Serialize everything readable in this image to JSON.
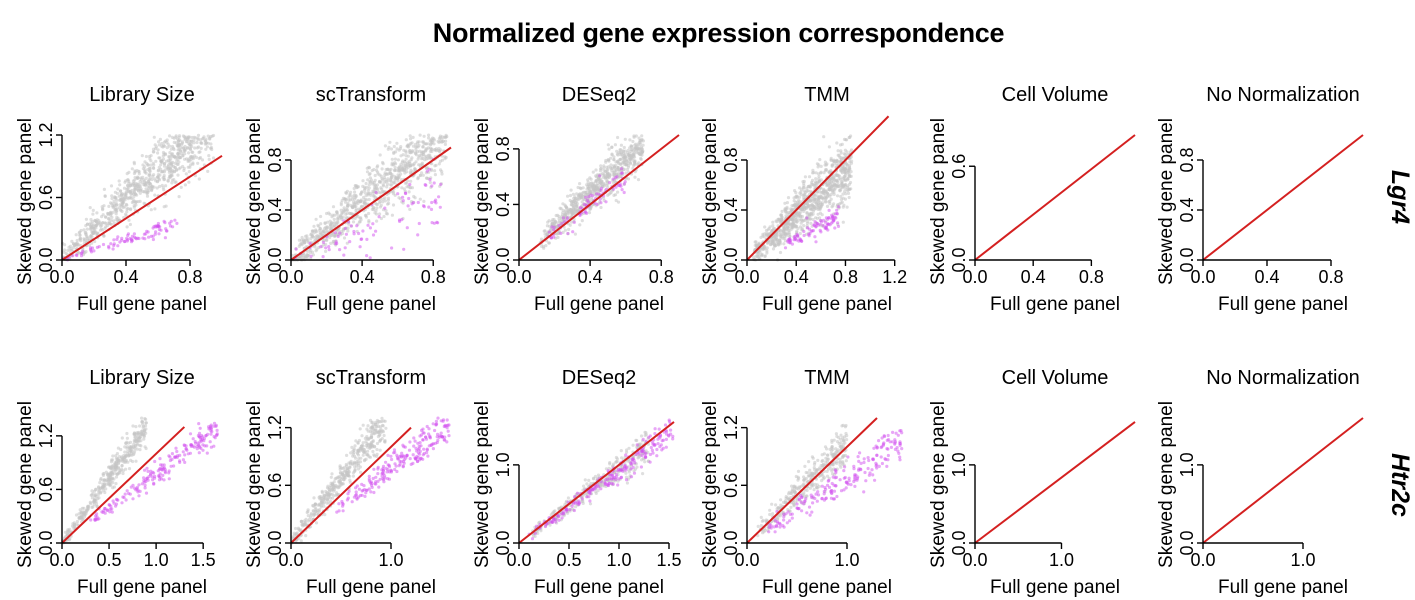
{
  "title": "Normalized gene expression correspondence",
  "colors": {
    "identity_line": "#d42020",
    "other_genes": "#c4c4c4",
    "highlighted_gene": "#d24ff0",
    "axis": "#000000"
  },
  "chart_data": [
    {
      "type": "scatter",
      "row_gene": "Lgr4",
      "title": "Library Size",
      "xlabel": "Full gene panel",
      "ylabel": "Skewed gene panel",
      "xlim": [
        0,
        1.0
      ],
      "ylim": [
        0,
        1.2
      ],
      "xticks": [
        0.0,
        0.4,
        0.8
      ],
      "yticks": [
        0.0,
        0.6,
        1.2
      ],
      "series": [
        {
          "name": "other genes",
          "color": "#c4c4c4",
          "n": 950,
          "slope": 1.45,
          "spread": 0.14,
          "xmax": 0.95
        },
        {
          "name": "Lgr4",
          "color": "#d24ff0",
          "n": 90,
          "slope": 0.48,
          "spread": 0.035,
          "xmax": 0.72
        }
      ],
      "identity_line": [
        [
          0,
          0
        ],
        [
          1.0,
          1.0
        ]
      ]
    },
    {
      "type": "scatter",
      "row_gene": "Lgr4",
      "title": "scTransform",
      "xlabel": "Full gene panel",
      "ylabel": "Skewed gene panel",
      "xlim": [
        0,
        0.9
      ],
      "ylim": [
        0,
        1.0
      ],
      "xticks": [
        0.0,
        0.4,
        0.8
      ],
      "yticks": [
        0.0,
        0.4,
        0.8
      ],
      "series": [
        {
          "name": "other genes",
          "color": "#c4c4c4",
          "n": 950,
          "slope": 1.15,
          "spread": 0.13,
          "xmax": 0.88
        },
        {
          "name": "Lgr4",
          "color": "#d24ff0",
          "n": 90,
          "slope": 0.55,
          "spread": 0.12,
          "xmax": 0.85
        }
      ],
      "identity_line": [
        [
          0,
          0
        ],
        [
          0.9,
          0.9
        ]
      ]
    },
    {
      "type": "scatter",
      "row_gene": "Lgr4",
      "title": "DESeq2",
      "xlabel": "Full gene panel",
      "ylabel": "Skewed gene panel",
      "xlim": [
        0,
        0.9
      ],
      "ylim": [
        0,
        0.9
      ],
      "xticks": [
        0.0,
        0.4,
        0.8
      ],
      "yticks": [
        0.0,
        0.4,
        0.8
      ],
      "series": [
        {
          "name": "other genes",
          "color": "#c4c4c4",
          "n": 700,
          "slope": 1.2,
          "spread": 0.08,
          "xmin": 0.12,
          "xmax": 0.7
        },
        {
          "name": "Lgr4",
          "color": "#d24ff0",
          "n": 80,
          "slope": 1.0,
          "spread": 0.05,
          "xmin": 0.15,
          "xmax": 0.6
        }
      ],
      "identity_line": [
        [
          0,
          0
        ],
        [
          0.9,
          0.9
        ]
      ]
    },
    {
      "type": "scatter",
      "row_gene": "Lgr4",
      "title": "TMM",
      "xlabel": "Full gene panel",
      "ylabel": "Skewed gene panel",
      "xlim": [
        0,
        1.3
      ],
      "ylim": [
        0,
        1.0
      ],
      "xticks": [
        0.0,
        0.4,
        0.8,
        1.2
      ],
      "yticks": [
        0.0,
        0.4,
        0.8
      ],
      "series": [
        {
          "name": "other genes",
          "color": "#c4c4c4",
          "n": 950,
          "slope": 0.9,
          "spread": 0.11,
          "xmin": 0.05,
          "xmax": 0.85
        },
        {
          "name": "Lgr4",
          "color": "#d24ff0",
          "n": 90,
          "slope": 0.45,
          "spread": 0.04,
          "xmin": 0.3,
          "xmax": 0.75
        }
      ],
      "identity_line": [
        [
          0,
          0
        ],
        [
          1.15,
          1.15
        ]
      ]
    },
    {
      "type": "scatter",
      "row_gene": "Lgr4",
      "title": "Cell Volume",
      "xlabel": "Full gene panel",
      "ylabel": "Skewed gene panel",
      "xlim": [
        0,
        1.1
      ],
      "ylim": [
        0,
        0.8
      ],
      "xticks": [
        0.0,
        0.4,
        0.8
      ],
      "yticks": [
        0.0,
        0.6
      ],
      "series": [
        {
          "name": "other genes",
          "color": "#c4c4c4",
          "n": 0,
          "slope": 1.0,
          "spread": 0.0
        },
        {
          "name": "Lgr4",
          "color": "#d24ff0",
          "n": 0,
          "slope": 1.0,
          "spread": 0.0
        }
      ],
      "identity_line": [
        [
          0,
          0
        ],
        [
          1.1,
          0.8
        ]
      ]
    },
    {
      "type": "scatter",
      "row_gene": "Lgr4",
      "title": "No Normalization",
      "xlabel": "Full gene panel",
      "ylabel": "Skewed gene panel",
      "xlim": [
        0,
        1.0
      ],
      "ylim": [
        0,
        1.0
      ],
      "xticks": [
        0.0,
        0.4,
        0.8
      ],
      "yticks": [
        0.0,
        0.4,
        0.8
      ],
      "series": [
        {
          "name": "other genes",
          "color": "#c4c4c4",
          "n": 0,
          "slope": 1.0,
          "spread": 0.0
        },
        {
          "name": "Lgr4",
          "color": "#d24ff0",
          "n": 0,
          "slope": 1.0,
          "spread": 0.0
        }
      ],
      "identity_line": [
        [
          0,
          0
        ],
        [
          1.0,
          1.0
        ]
      ]
    },
    {
      "type": "scatter",
      "row_gene": "Htr2c",
      "title": "Library Size",
      "xlabel": "Full gene panel",
      "ylabel": "Skewed gene panel",
      "xlim": [
        0,
        1.7
      ],
      "ylim": [
        0,
        1.4
      ],
      "xticks": [
        0.0,
        0.5,
        1.0,
        1.5
      ],
      "yticks": [
        0.0,
        0.6,
        1.2
      ],
      "series": [
        {
          "name": "other genes",
          "color": "#c4c4c4",
          "n": 400,
          "slope": 1.45,
          "spread": 0.08,
          "xmax": 0.9
        },
        {
          "name": "Htr2c",
          "color": "#d24ff0",
          "n": 200,
          "slope": 0.78,
          "spread": 0.04,
          "xmin": 0.3,
          "xmax": 1.65
        }
      ],
      "identity_line": [
        [
          0,
          0
        ],
        [
          1.3,
          1.3
        ]
      ]
    },
    {
      "type": "scatter",
      "row_gene": "Htr2c",
      "title": "scTransform",
      "xlabel": "Full gene panel",
      "ylabel": "Skewed gene panel",
      "xlim": [
        0,
        1.6
      ],
      "ylim": [
        0,
        1.3
      ],
      "xticks": [
        0.0,
        1.0
      ],
      "yticks": [
        0.0,
        0.6,
        1.2
      ],
      "series": [
        {
          "name": "other genes",
          "color": "#c4c4c4",
          "n": 450,
          "slope": 1.35,
          "spread": 0.09,
          "xmax": 0.95
        },
        {
          "name": "Htr2c",
          "color": "#d24ff0",
          "n": 220,
          "slope": 0.78,
          "spread": 0.05,
          "xmin": 0.4,
          "xmax": 1.58
        }
      ],
      "identity_line": [
        [
          0,
          0
        ],
        [
          1.2,
          1.2
        ]
      ]
    },
    {
      "type": "scatter",
      "row_gene": "Htr2c",
      "title": "DESeq2",
      "xlabel": "Full gene panel",
      "ylabel": "Skewed gene panel",
      "xlim": [
        0,
        1.6
      ],
      "ylim": [
        0,
        1.6
      ],
      "xticks": [
        0.0,
        0.5,
        1.0,
        1.5
      ],
      "yticks": [
        0.0,
        1.0
      ],
      "series": [
        {
          "name": "other genes",
          "color": "#c4c4c4",
          "n": 350,
          "slope": 0.95,
          "spread": 0.06,
          "xmin": 0.1,
          "xmax": 1.3
        },
        {
          "name": "Htr2c",
          "color": "#d24ff0",
          "n": 220,
          "slope": 0.92,
          "spread": 0.05,
          "xmin": 0.1,
          "xmax": 1.55
        }
      ],
      "identity_line": [
        [
          0,
          0
        ],
        [
          1.55,
          1.55
        ]
      ]
    },
    {
      "type": "scatter",
      "row_gene": "Htr2c",
      "title": "TMM",
      "xlabel": "Full gene panel",
      "ylabel": "Skewed gene panel",
      "xlim": [
        0,
        1.6
      ],
      "ylim": [
        0,
        1.3
      ],
      "xticks": [
        0.0,
        1.0
      ],
      "yticks": [
        0.0,
        0.6,
        1.2
      ],
      "series": [
        {
          "name": "other genes",
          "color": "#c4c4c4",
          "n": 350,
          "slope": 1.05,
          "spread": 0.09,
          "xmin": 0.1,
          "xmax": 1.0
        },
        {
          "name": "Htr2c",
          "color": "#d24ff0",
          "n": 200,
          "slope": 0.68,
          "spread": 0.06,
          "xmin": 0.2,
          "xmax": 1.55
        }
      ],
      "identity_line": [
        [
          0,
          0
        ],
        [
          1.3,
          1.3
        ]
      ]
    },
    {
      "type": "scatter",
      "row_gene": "Htr2c",
      "title": "Cell Volume",
      "xlabel": "Full gene panel",
      "ylabel": "Skewed gene panel",
      "xlim": [
        0,
        1.85
      ],
      "ylim": [
        0,
        1.6
      ],
      "xticks": [
        0.0,
        1.0
      ],
      "yticks": [
        0.0,
        1.0
      ],
      "series": [
        {
          "name": "other genes",
          "color": "#c4c4c4",
          "n": 0,
          "slope": 1.0,
          "spread": 0.0
        },
        {
          "name": "Htr2c",
          "color": "#d24ff0",
          "n": 0,
          "slope": 1.0,
          "spread": 0.0
        }
      ],
      "identity_line": [
        [
          0,
          0
        ],
        [
          1.85,
          1.55
        ]
      ]
    },
    {
      "type": "scatter",
      "row_gene": "Htr2c",
      "title": "No Normalization",
      "xlabel": "Full gene panel",
      "ylabel": "Skewed gene panel",
      "xlim": [
        0,
        1.6
      ],
      "ylim": [
        0,
        1.6
      ],
      "xticks": [
        0.0,
        1.0
      ],
      "yticks": [
        0.0,
        1.0
      ],
      "series": [
        {
          "name": "other genes",
          "color": "#c4c4c4",
          "n": 0,
          "slope": 1.0,
          "spread": 0.0
        },
        {
          "name": "Htr2c",
          "color": "#d24ff0",
          "n": 0,
          "slope": 1.0,
          "spread": 0.0
        }
      ],
      "identity_line": [
        [
          0,
          0
        ],
        [
          1.6,
          1.6
        ]
      ]
    }
  ],
  "row_labels": [
    "Lgr4",
    "Htr2c"
  ]
}
